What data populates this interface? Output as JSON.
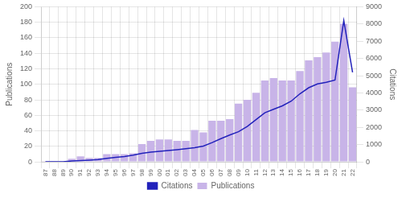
{
  "chart_data": {
    "type": "bar",
    "categories": [
      "87",
      "88",
      "89",
      "90",
      "91",
      "92",
      "93",
      "94",
      "95",
      "96",
      "97",
      "98",
      "99",
      "00",
      "01",
      "02",
      "03",
      "04",
      "05",
      "06",
      "07",
      "08",
      "09",
      "10",
      "11",
      "12",
      "13",
      "14",
      "15",
      "16",
      "17",
      "18",
      "19",
      "20",
      "21",
      "22"
    ],
    "series": [
      {
        "name": "Publications",
        "type": "bar",
        "color": "#c8b4e8",
        "values": [
          1,
          1,
          1,
          4,
          7,
          5,
          5,
          10,
          10,
          10,
          11,
          23,
          27,
          29,
          29,
          27,
          27,
          41,
          38,
          53,
          53,
          55,
          75,
          80,
          89,
          105,
          108,
          105,
          105,
          117,
          131,
          135,
          141,
          155,
          178,
          96
        ]
      },
      {
        "name": "Citations",
        "type": "line",
        "color": "#2222bb",
        "axis": "y2",
        "values": [
          2,
          2,
          2,
          50,
          80,
          100,
          130,
          200,
          260,
          310,
          390,
          500,
          560,
          610,
          660,
          710,
          760,
          820,
          920,
          1120,
          1350,
          1560,
          1750,
          2050,
          2450,
          2850,
          3050,
          3250,
          3520,
          3950,
          4300,
          4520,
          4620,
          4750,
          8200,
          5200
        ]
      }
    ],
    "ylabel": "Publications",
    "y2label": "Citations",
    "ylim": [
      0,
      200
    ],
    "yticks": [
      0,
      20,
      40,
      60,
      80,
      100,
      120,
      140,
      160,
      180,
      200
    ],
    "y2lim": [
      0,
      9000
    ],
    "y2ticks": [
      0,
      1000,
      2000,
      3000,
      4000,
      5000,
      6000,
      7000,
      8000,
      9000
    ],
    "grid": true,
    "legend": "bottom"
  }
}
